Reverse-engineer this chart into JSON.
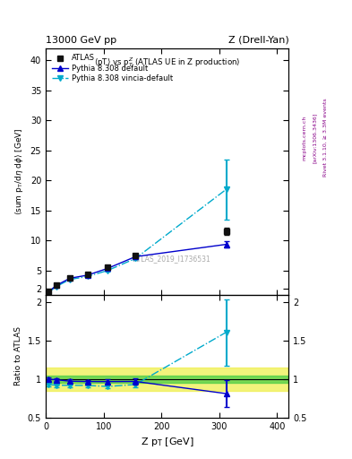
{
  "title_left": "13000 GeV pp",
  "title_right": "Z (Drell-Yan)",
  "plot_title": "<pT> vs p_{T}^{Z} (ATLAS UE in Z production)",
  "xlabel": "Z p_{T} [GeV]",
  "ylabel_main": "<sum p_{T}/d#eta d#phi> [GeV]",
  "ylabel_ratio": "Ratio to ATLAS",
  "rivet_label": "Rivet 3.1.10, ≥ 3.3M events",
  "arxiv_label": "[arXiv:1306.3436]",
  "mcplots_label": "mcplots.cern.ch",
  "atlas_id": "ATLAS_2019_I1736531",
  "atlas_x": [
    5,
    18,
    42,
    72,
    107,
    155,
    312
  ],
  "atlas_y": [
    1.48,
    2.52,
    3.82,
    4.35,
    5.52,
    7.52,
    11.5
  ],
  "atlas_yerr": [
    0.05,
    0.08,
    0.12,
    0.15,
    0.18,
    0.3,
    0.6
  ],
  "pythia_default_x": [
    5,
    18,
    42,
    72,
    107,
    155,
    312
  ],
  "pythia_default_y": [
    1.48,
    2.5,
    3.72,
    4.22,
    5.35,
    7.3,
    9.35
  ],
  "pythia_default_yerr": [
    0.03,
    0.05,
    0.08,
    0.1,
    0.14,
    0.25,
    0.5
  ],
  "pythia_vincia_x": [
    5,
    18,
    42,
    72,
    107,
    155,
    312
  ],
  "pythia_vincia_y": [
    1.38,
    2.32,
    3.52,
    4.0,
    5.0,
    7.0,
    18.5
  ],
  "pythia_vincia_yerr": [
    0.03,
    0.05,
    0.08,
    0.1,
    0.14,
    0.25,
    5.0
  ],
  "ratio_default_y": [
    1.0,
    0.993,
    0.974,
    0.97,
    0.969,
    0.971,
    0.813
  ],
  "ratio_default_yerr": [
    0.022,
    0.022,
    0.022,
    0.022,
    0.028,
    0.038,
    0.17
  ],
  "ratio_vincia_y": [
    0.932,
    0.921,
    0.921,
    0.919,
    0.906,
    0.931,
    1.61
  ],
  "ratio_vincia_yerr": [
    0.022,
    0.022,
    0.022,
    0.022,
    0.028,
    0.038,
    0.43
  ],
  "xlim": [
    0,
    420
  ],
  "ylim_main": [
    1.0,
    42
  ],
  "yticks_main": [
    2,
    5,
    10,
    15,
    20,
    25,
    30,
    35,
    40
  ],
  "ylim_ratio": [
    0.5,
    2.1
  ],
  "yticks_ratio": [
    0.5,
    1.0,
    1.5,
    2.0
  ],
  "green_band": [
    0.95,
    1.05
  ],
  "yellow_band": [
    0.85,
    1.15
  ],
  "atlas_color": "#111111",
  "pythia_default_color": "#0000cc",
  "pythia_vincia_color": "#00aacc",
  "background_color": "#ffffff"
}
